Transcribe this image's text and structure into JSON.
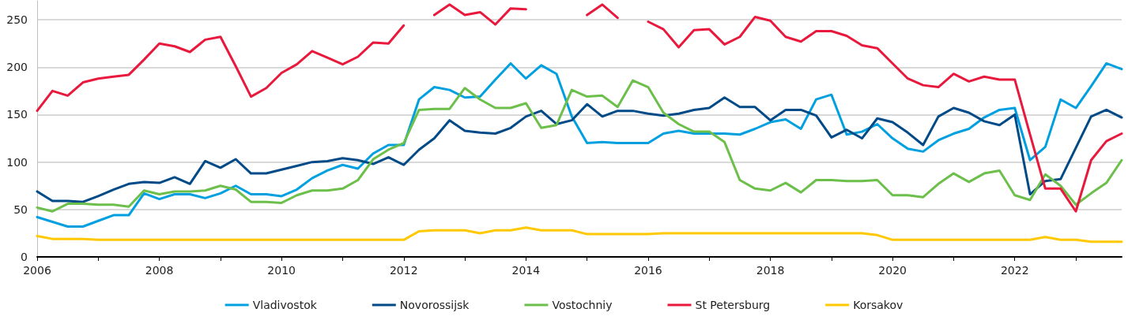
{
  "chart_data": {
    "type": "line",
    "x": [
      2006,
      2006.25,
      2006.5,
      2006.75,
      2007,
      2007.25,
      2007.5,
      2007.75,
      2008,
      2008.25,
      2008.5,
      2008.75,
      2009,
      2009.25,
      2009.5,
      2009.75,
      2010,
      2010.25,
      2010.5,
      2010.75,
      2011,
      2011.25,
      2011.5,
      2011.75,
      2012,
      2012.25,
      2012.5,
      2012.75,
      2013,
      2013.25,
      2013.5,
      2013.75,
      2014,
      2014.25,
      2014.5,
      2014.75,
      2015,
      2015.25,
      2015.5,
      2015.75,
      2016,
      2016.25,
      2016.5,
      2016.75,
      2017,
      2017.25,
      2017.5,
      2017.75,
      2018,
      2018.25,
      2018.5,
      2018.75,
      2019,
      2019.25,
      2019.5,
      2019.75,
      2020,
      2020.25,
      2020.5,
      2020.75,
      2021,
      2021.25,
      2021.5,
      2021.75,
      2022,
      2022.25,
      2022.5,
      2022.75,
      2023,
      2023.25,
      2023.5,
      2023.75
    ],
    "series": [
      {
        "name": "Vladivostok",
        "color": "#00a0e0",
        "values": [
          42,
          37,
          32,
          32,
          38,
          44,
          44,
          67,
          61,
          66,
          66,
          62,
          67,
          75,
          66,
          66,
          64,
          71,
          83,
          91,
          97,
          93,
          109,
          118,
          118,
          166,
          179,
          176,
          168,
          169,
          187,
          204,
          188,
          202,
          193,
          148,
          120,
          121,
          120,
          120,
          120,
          130,
          133,
          130,
          130,
          130,
          129,
          135,
          142,
          145,
          135,
          166,
          171,
          129,
          132,
          140,
          125,
          114,
          111,
          123,
          130,
          135,
          147,
          155,
          157,
          102,
          116,
          166,
          157,
          180,
          204,
          198
        ]
      },
      {
        "name": "Novorossijsk",
        "color": "#004a87",
        "values": [
          69,
          59,
          59,
          58,
          64,
          71,
          77,
          79,
          78,
          84,
          77,
          101,
          94,
          103,
          88,
          88,
          92,
          96,
          100,
          101,
          104,
          102,
          98,
          105,
          97,
          113,
          125,
          144,
          133,
          131,
          130,
          136,
          148,
          154,
          140,
          144,
          161,
          148,
          154,
          154,
          151,
          149,
          151,
          155,
          157,
          168,
          158,
          158,
          144,
          155,
          155,
          149,
          126,
          134,
          125,
          146,
          142,
          131,
          118,
          148,
          157,
          152,
          143,
          139,
          150,
          66,
          80,
          82,
          115,
          148,
          155,
          147
        ]
      },
      {
        "name": "Vostochniy",
        "color": "#6cbf4a",
        "values": [
          52,
          48,
          56,
          56,
          55,
          55,
          53,
          70,
          66,
          69,
          69,
          70,
          75,
          71,
          58,
          58,
          57,
          65,
          70,
          70,
          72,
          81,
          103,
          113,
          120,
          155,
          156,
          156,
          178,
          166,
          157,
          157,
          162,
          136,
          139,
          176,
          169,
          170,
          158,
          186,
          179,
          152,
          140,
          132,
          132,
          121,
          81,
          72,
          70,
          78,
          68,
          81,
          81,
          80,
          80,
          81,
          65,
          65,
          63,
          77,
          88,
          79,
          88,
          91,
          65,
          60,
          87,
          75,
          55,
          67,
          78,
          102
        ]
      },
      {
        "name": "St Petersburg",
        "color": "#e8193c",
        "values": [
          154,
          175,
          170,
          184,
          188,
          190,
          192,
          208,
          225,
          222,
          216,
          229,
          232,
          201,
          169,
          178,
          194,
          203,
          217,
          210,
          203,
          211,
          226,
          225,
          244,
          null,
          255,
          266,
          255,
          258,
          245,
          262,
          261,
          null,
          null,
          null,
          255,
          266,
          252,
          null,
          248,
          240,
          221,
          239,
          240,
          224,
          232,
          253,
          249,
          232,
          227,
          238,
          238,
          233,
          223,
          220,
          204,
          188,
          181,
          179,
          193,
          185,
          190,
          187,
          187,
          129,
          72,
          72,
          48,
          102,
          122,
          130
        ]
      },
      {
        "name": "Korsakov",
        "color": "#ffc800",
        "values": [
          22,
          19,
          19,
          19,
          18,
          18,
          18,
          18,
          18,
          18,
          18,
          18,
          18,
          18,
          18,
          18,
          18,
          18,
          18,
          18,
          18,
          18,
          18,
          18,
          18,
          27,
          28,
          28,
          28,
          25,
          28,
          28,
          31,
          28,
          28,
          28,
          24,
          24,
          24,
          24,
          24,
          25,
          25,
          25,
          25,
          25,
          25,
          25,
          25,
          25,
          25,
          25,
          25,
          25,
          25,
          23,
          18,
          18,
          18,
          18,
          18,
          18,
          18,
          18,
          18,
          18,
          21,
          18,
          18,
          16,
          16,
          16
        ]
      }
    ],
    "xlim": [
      2006,
      2023.75
    ],
    "xticks": [
      2006,
      {
        "value": 2007,
        "label": null
      },
      2008,
      {
        "value": 2009,
        "label": null
      },
      2010,
      {
        "value": 2011,
        "label": null
      },
      2012,
      {
        "value": 2013,
        "label": null
      },
      2014,
      {
        "value": 2015,
        "label": null
      },
      2016,
      {
        "value": 2017,
        "label": null
      },
      2018,
      {
        "value": 2019,
        "label": null
      },
      2020,
      {
        "value": 2021,
        "label": null
      },
      2022,
      {
        "value": 2023,
        "label": null
      }
    ],
    "ylim": [
      0,
      270
    ],
    "yticks": [
      0,
      50,
      100,
      150,
      200,
      250
    ],
    "grid": "y",
    "legend": "bottom",
    "marker": "none",
    "line_style": "solid"
  }
}
